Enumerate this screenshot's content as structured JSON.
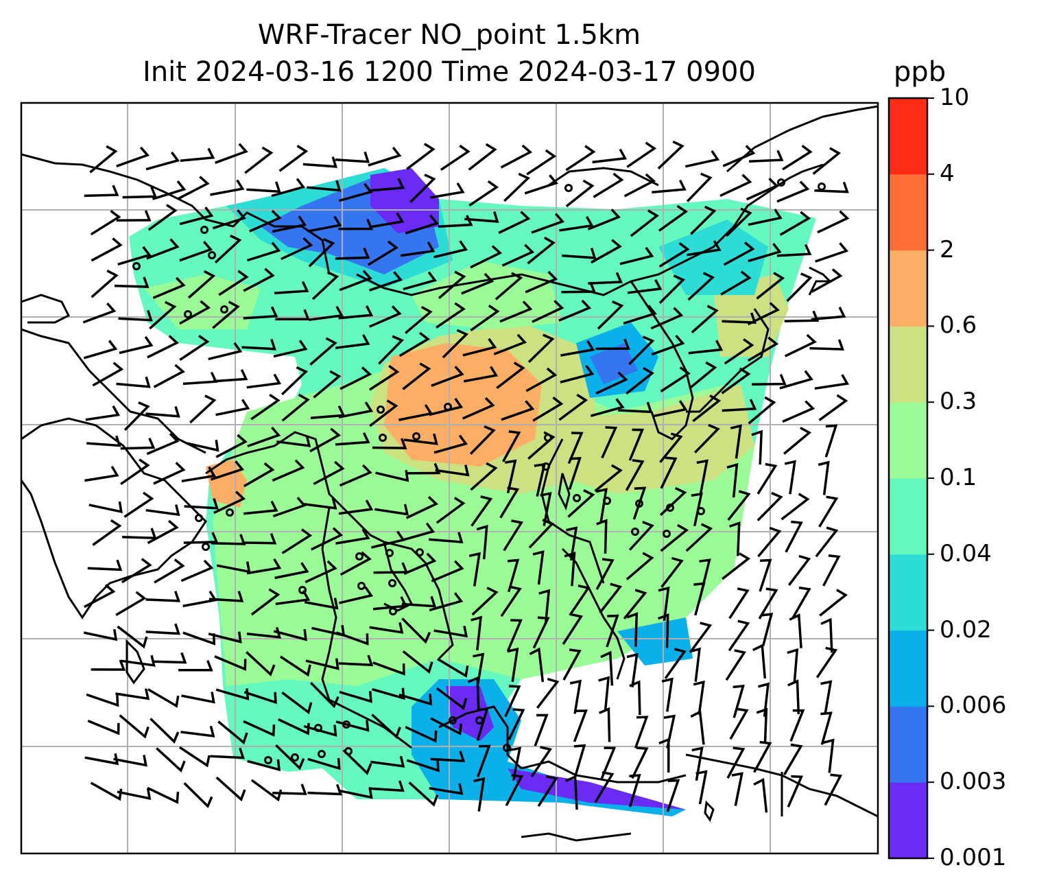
{
  "title_line1": "WRF-Tracer NO_point 1.5km",
  "title_line2": "Init 2024-03-16 1200 Time 2024-03-17 0900",
  "colorbar": {
    "units": "ppb",
    "levels": [
      "0.001",
      "0.003",
      "0.006",
      "0.02",
      "0.04",
      "0.1",
      "0.3",
      "0.6",
      "2",
      "4",
      "10"
    ],
    "colors": [
      "#6a2bf5",
      "#3575f0",
      "#09b0ea",
      "#2ddcd5",
      "#65f9bf",
      "#9afb97",
      "#cbe182",
      "#fcae64",
      "#fe6e38",
      "#fe2c15"
    ]
  },
  "map": {
    "gridlines": "on",
    "coastline_color": "#000000",
    "gridline_color": "#b0b0b0",
    "overlays": [
      "tracer concentration shading",
      "wind barbs",
      "calm-wind circles",
      "coastlines"
    ]
  }
}
